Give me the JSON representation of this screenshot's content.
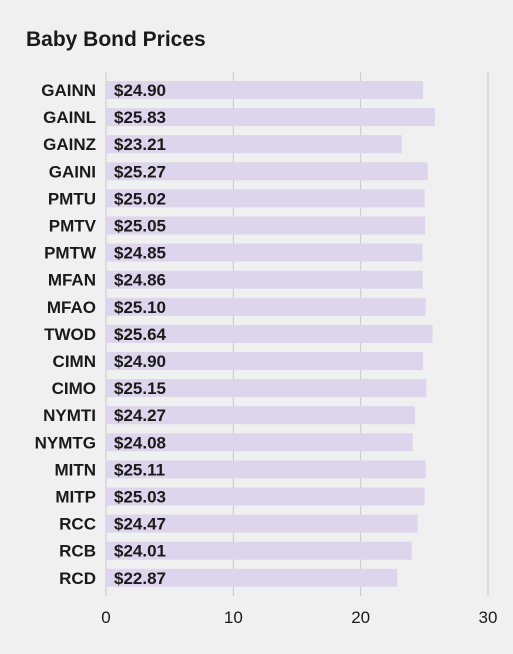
{
  "chart_data": {
    "type": "bar",
    "orientation": "horizontal",
    "title": "Baby Bond Prices",
    "xlabel": "",
    "ylabel": "",
    "categories": [
      "GAINN",
      "GAINL",
      "GAINZ",
      "GAINI",
      "PMTU",
      "PMTV",
      "PMTW",
      "MFAN",
      "MFAO",
      "TWOD",
      "CIMN",
      "CIMO",
      "NYMTI",
      "NYMTG",
      "MITN",
      "MITP",
      "RCC",
      "RCB",
      "RCD"
    ],
    "values": [
      24.9,
      25.83,
      23.21,
      25.27,
      25.02,
      25.05,
      24.85,
      24.86,
      25.1,
      25.64,
      24.9,
      25.15,
      24.27,
      24.08,
      25.11,
      25.03,
      24.47,
      24.01,
      22.87
    ],
    "value_labels": [
      "$24.90",
      "$25.83",
      "$23.21",
      "$25.27",
      "$25.02",
      "$25.05",
      "$24.85",
      "$24.86",
      "$25.10",
      "$25.64",
      "$24.90",
      "$25.15",
      "$24.27",
      "$24.08",
      "$25.11",
      "$25.03",
      "$24.47",
      "$24.01",
      "$22.87"
    ],
    "xlim": [
      0,
      30
    ],
    "xticks": [
      0,
      10,
      20,
      30
    ],
    "xtick_labels": [
      "0",
      "10",
      "20",
      "30"
    ],
    "grid": true,
    "legend": "none",
    "colors": {
      "bar": "#dcd5ec",
      "grid": "#c8c8c8",
      "text": "#1a1a1a",
      "background": "#f0f0f0"
    }
  }
}
